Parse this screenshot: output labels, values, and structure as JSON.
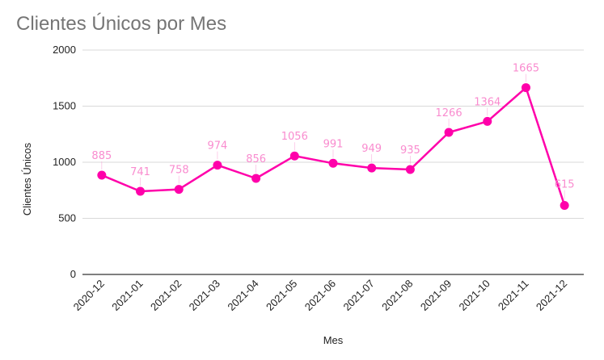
{
  "chart_data": {
    "type": "line",
    "title": "Clientes Únicos por Mes",
    "xlabel": "Mes",
    "ylabel": "Clientes Únicos",
    "categories": [
      "2020-12",
      "2021-01",
      "2021-02",
      "2021-03",
      "2021-04",
      "2021-05",
      "2021-06",
      "2021-07",
      "2021-08",
      "2021-09",
      "2021-10",
      "2021-11",
      "2021-12"
    ],
    "series": [
      {
        "values": [
          885,
          741,
          758,
          974,
          856,
          1056,
          991,
          949,
          935,
          1266,
          1364,
          1665,
          615
        ]
      }
    ],
    "ylim": [
      0,
      2000
    ],
    "yticks": [
      0,
      500,
      1000,
      1500,
      2000
    ],
    "grid": true,
    "legend": "none",
    "colors": {
      "line": "#ff00aa",
      "data_label": "#f98ccf",
      "grid": "#d9d9d9",
      "title": "#757575"
    }
  }
}
